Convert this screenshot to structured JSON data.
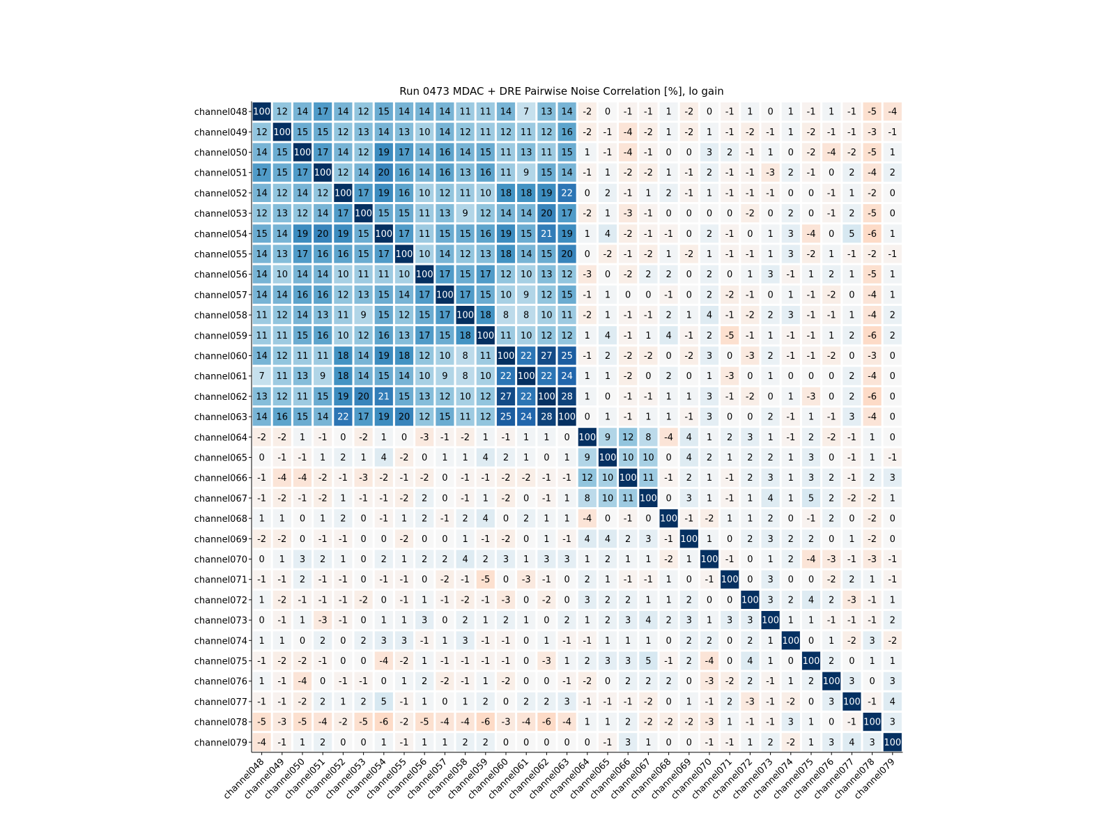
{
  "chart_data": {
    "type": "heatmap",
    "title": "Run 0473 MDAC + DRE Pairwise Noise Correlation [%], lo gain",
    "row_labels": [
      "channel048",
      "channel049",
      "channel050",
      "channel051",
      "channel052",
      "channel053",
      "channel054",
      "channel055",
      "channel056",
      "channel057",
      "channel058",
      "channel059",
      "channel060",
      "channel061",
      "channel062",
      "channel063",
      "channel064",
      "channel065",
      "channel066",
      "channel067",
      "channel068",
      "channel069",
      "channel070",
      "channel071",
      "channel072",
      "channel073",
      "channel074",
      "channel075",
      "channel076",
      "channel077",
      "channel078",
      "channel079"
    ],
    "col_labels": [
      "channel048",
      "channel049",
      "channel050",
      "channel051",
      "channel052",
      "channel053",
      "channel054",
      "channel055",
      "channel056",
      "channel057",
      "channel058",
      "channel059",
      "channel060",
      "channel061",
      "channel062",
      "channel063",
      "channel064",
      "channel065",
      "channel066",
      "channel067",
      "channel068",
      "channel069",
      "channel070",
      "channel071",
      "channel072",
      "channel073",
      "channel074",
      "channel075",
      "channel076",
      "channel077",
      "channel078",
      "channel079"
    ],
    "colormap": "RdBu_r",
    "value_range": [
      -30,
      30
    ],
    "values": [
      [
        100,
        12,
        14,
        17,
        14,
        12,
        15,
        14,
        14,
        14,
        11,
        11,
        14,
        7,
        13,
        14,
        -2,
        0,
        -1,
        -1,
        1,
        -2,
        0,
        -1,
        1,
        0,
        1,
        -1,
        1,
        -1,
        -5,
        -4
      ],
      [
        12,
        100,
        15,
        15,
        12,
        13,
        14,
        13,
        10,
        14,
        12,
        11,
        12,
        11,
        12,
        16,
        -2,
        -1,
        -4,
        -2,
        1,
        -2,
        1,
        -1,
        -2,
        -1,
        1,
        -2,
        -1,
        -1,
        -3,
        -1
      ],
      [
        14,
        15,
        100,
        17,
        14,
        12,
        19,
        17,
        14,
        16,
        14,
        15,
        11,
        13,
        11,
        15,
        1,
        -1,
        -4,
        -1,
        0,
        0,
        3,
        2,
        -1,
        1,
        0,
        -2,
        -4,
        -2,
        -5,
        1
      ],
      [
        17,
        15,
        17,
        100,
        12,
        14,
        20,
        16,
        14,
        16,
        13,
        16,
        11,
        9,
        15,
        14,
        -1,
        1,
        -2,
        -2,
        1,
        -1,
        2,
        -1,
        -1,
        -3,
        2,
        -1,
        0,
        2,
        -4,
        2
      ],
      [
        14,
        12,
        14,
        12,
        100,
        17,
        19,
        16,
        10,
        12,
        11,
        10,
        18,
        18,
        19,
        22,
        0,
        2,
        -1,
        1,
        2,
        -1,
        1,
        -1,
        -1,
        -1,
        0,
        0,
        -1,
        1,
        -2,
        0
      ],
      [
        12,
        13,
        12,
        14,
        17,
        100,
        15,
        15,
        11,
        13,
        9,
        12,
        14,
        14,
        20,
        17,
        -2,
        1,
        -3,
        -1,
        0,
        0,
        0,
        0,
        -2,
        0,
        2,
        0,
        -1,
        2,
        -5,
        0
      ],
      [
        15,
        14,
        19,
        20,
        19,
        15,
        100,
        17,
        11,
        15,
        15,
        16,
        19,
        15,
        21,
        19,
        1,
        4,
        -2,
        -1,
        -1,
        0,
        2,
        -1,
        0,
        1,
        3,
        -4,
        0,
        5,
        -6,
        1
      ],
      [
        14,
        13,
        17,
        16,
        16,
        15,
        17,
        100,
        10,
        14,
        12,
        13,
        18,
        14,
        15,
        20,
        0,
        -2,
        -1,
        -2,
        1,
        -2,
        1,
        -1,
        -1,
        1,
        3,
        -2,
        1,
        -1,
        -2,
        -1
      ],
      [
        14,
        10,
        14,
        14,
        10,
        11,
        11,
        10,
        100,
        17,
        15,
        17,
        12,
        10,
        13,
        12,
        -3,
        0,
        -2,
        2,
        2,
        0,
        2,
        0,
        1,
        3,
        -1,
        1,
        2,
        1,
        -5,
        1
      ],
      [
        14,
        14,
        16,
        16,
        12,
        13,
        15,
        14,
        17,
        100,
        17,
        15,
        10,
        9,
        12,
        15,
        -1,
        1,
        0,
        0,
        -1,
        0,
        2,
        -2,
        -1,
        0,
        1,
        -1,
        -2,
        0,
        -4,
        1
      ],
      [
        11,
        12,
        14,
        13,
        11,
        9,
        15,
        12,
        15,
        17,
        100,
        18,
        8,
        8,
        10,
        11,
        -2,
        1,
        -1,
        -1,
        2,
        1,
        4,
        -1,
        -2,
        2,
        3,
        -1,
        -1,
        1,
        -4,
        2
      ],
      [
        11,
        11,
        15,
        16,
        10,
        12,
        16,
        13,
        17,
        15,
        18,
        100,
        11,
        10,
        12,
        12,
        1,
        4,
        -1,
        1,
        4,
        -1,
        2,
        -5,
        -1,
        1,
        -1,
        -1,
        1,
        2,
        -6,
        2
      ],
      [
        14,
        12,
        11,
        11,
        18,
        14,
        19,
        18,
        12,
        10,
        8,
        11,
        100,
        22,
        27,
        25,
        -1,
        2,
        -2,
        -2,
        0,
        -2,
        3,
        0,
        -3,
        2,
        -1,
        -1,
        -2,
        0,
        -3,
        0
      ],
      [
        7,
        11,
        13,
        9,
        18,
        14,
        15,
        14,
        10,
        9,
        8,
        10,
        22,
        100,
        22,
        24,
        1,
        1,
        -2,
        0,
        2,
        0,
        1,
        -3,
        0,
        1,
        0,
        0,
        0,
        2,
        -4,
        0
      ],
      [
        13,
        12,
        11,
        15,
        19,
        20,
        21,
        15,
        13,
        12,
        10,
        12,
        27,
        22,
        100,
        28,
        1,
        0,
        -1,
        -1,
        1,
        1,
        3,
        -1,
        -2,
        0,
        1,
        -3,
        0,
        2,
        -6,
        0
      ],
      [
        14,
        16,
        15,
        14,
        22,
        17,
        19,
        20,
        12,
        15,
        11,
        12,
        25,
        24,
        28,
        100,
        0,
        1,
        -1,
        1,
        1,
        -1,
        3,
        0,
        0,
        2,
        -1,
        1,
        -1,
        3,
        -4,
        0
      ],
      [
        -2,
        -2,
        1,
        -1,
        0,
        -2,
        1,
        0,
        -3,
        -1,
        -2,
        1,
        -1,
        1,
        1,
        0,
        100,
        9,
        12,
        8,
        -4,
        4,
        1,
        2,
        3,
        1,
        -1,
        2,
        -2,
        -1,
        1,
        0
      ],
      [
        0,
        -1,
        -1,
        1,
        2,
        1,
        4,
        -2,
        0,
        1,
        1,
        4,
        2,
        1,
        0,
        1,
        9,
        100,
        10,
        10,
        0,
        4,
        2,
        1,
        2,
        2,
        1,
        3,
        0,
        -1,
        1,
        -1
      ],
      [
        -1,
        -4,
        -4,
        -2,
        -1,
        -3,
        -2,
        -1,
        -2,
        0,
        -1,
        -1,
        -2,
        -2,
        -1,
        -1,
        12,
        10,
        100,
        11,
        -1,
        2,
        1,
        -1,
        2,
        3,
        1,
        3,
        2,
        -1,
        2,
        3
      ],
      [
        -1,
        -2,
        -1,
        -2,
        1,
        -1,
        -1,
        -2,
        2,
        0,
        -1,
        1,
        -2,
        0,
        -1,
        1,
        8,
        10,
        11,
        100,
        0,
        3,
        1,
        -1,
        1,
        4,
        1,
        5,
        2,
        -2,
        -2,
        1
      ],
      [
        1,
        1,
        0,
        1,
        2,
        0,
        -1,
        1,
        2,
        -1,
        2,
        4,
        0,
        2,
        1,
        1,
        -4,
        0,
        -1,
        0,
        100,
        -1,
        -2,
        1,
        1,
        2,
        0,
        -1,
        2,
        0,
        -2,
        0
      ],
      [
        -2,
        -2,
        0,
        -1,
        -1,
        0,
        0,
        -2,
        0,
        0,
        1,
        -1,
        -2,
        0,
        1,
        -1,
        4,
        4,
        2,
        3,
        -1,
        100,
        1,
        0,
        2,
        3,
        2,
        2,
        0,
        1,
        -2,
        0
      ],
      [
        0,
        1,
        3,
        2,
        1,
        0,
        2,
        1,
        2,
        2,
        4,
        2,
        3,
        1,
        3,
        3,
        1,
        2,
        1,
        1,
        -2,
        1,
        100,
        -1,
        0,
        1,
        2,
        -4,
        -3,
        -1,
        -3,
        -1
      ],
      [
        -1,
        -1,
        2,
        -1,
        -1,
        0,
        -1,
        -1,
        0,
        -2,
        -1,
        -5,
        0,
        -3,
        -1,
        0,
        2,
        1,
        -1,
        -1,
        1,
        0,
        -1,
        100,
        0,
        3,
        0,
        0,
        -2,
        2,
        1,
        -1
      ],
      [
        1,
        -2,
        -1,
        -1,
        -1,
        -2,
        0,
        -1,
        1,
        -1,
        -2,
        -1,
        -3,
        0,
        -2,
        0,
        3,
        2,
        2,
        1,
        1,
        2,
        0,
        0,
        100,
        3,
        2,
        4,
        2,
        -3,
        -1,
        1
      ],
      [
        0,
        -1,
        1,
        -3,
        -1,
        0,
        1,
        1,
        3,
        0,
        2,
        1,
        2,
        1,
        0,
        2,
        1,
        2,
        3,
        4,
        2,
        3,
        1,
        3,
        3,
        100,
        1,
        1,
        -1,
        -1,
        -1,
        2
      ],
      [
        1,
        1,
        0,
        2,
        0,
        2,
        3,
        3,
        -1,
        1,
        3,
        -1,
        -1,
        0,
        1,
        -1,
        -1,
        1,
        1,
        1,
        0,
        2,
        2,
        0,
        2,
        1,
        100,
        0,
        1,
        -2,
        3,
        -2
      ],
      [
        -1,
        -2,
        -2,
        -1,
        0,
        0,
        -4,
        -2,
        1,
        -1,
        -1,
        -1,
        -1,
        0,
        -3,
        1,
        2,
        3,
        3,
        5,
        -1,
        2,
        -4,
        0,
        4,
        1,
        0,
        100,
        2,
        0,
        1,
        1
      ],
      [
        1,
        -1,
        -4,
        0,
        -1,
        -1,
        0,
        1,
        2,
        -2,
        -1,
        1,
        -2,
        0,
        0,
        -1,
        -2,
        0,
        2,
        2,
        2,
        0,
        -3,
        -2,
        2,
        -1,
        1,
        2,
        100,
        3,
        0,
        3
      ],
      [
        -1,
        -1,
        -2,
        2,
        1,
        2,
        5,
        -1,
        1,
        0,
        1,
        2,
        0,
        2,
        2,
        3,
        -1,
        -1,
        -1,
        -2,
        0,
        1,
        -1,
        2,
        -3,
        -1,
        -2,
        0,
        3,
        100,
        -1,
        4
      ],
      [
        -5,
        -3,
        -5,
        -4,
        -2,
        -5,
        -6,
        -2,
        -5,
        -4,
        -4,
        -6,
        -3,
        -4,
        -6,
        -4,
        1,
        1,
        2,
        -2,
        -2,
        -2,
        -3,
        1,
        -1,
        -1,
        3,
        1,
        0,
        -1,
        100,
        3
      ],
      [
        -4,
        -1,
        1,
        2,
        0,
        0,
        1,
        -1,
        1,
        1,
        2,
        2,
        0,
        0,
        0,
        0,
        0,
        -1,
        3,
        1,
        0,
        0,
        -1,
        -1,
        1,
        2,
        -2,
        1,
        3,
        4,
        3,
        100
      ]
    ]
  }
}
